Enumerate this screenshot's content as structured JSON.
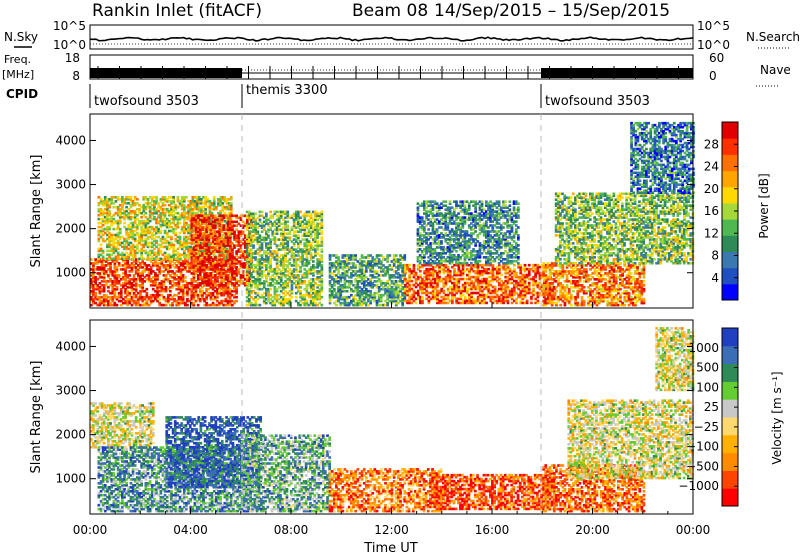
{
  "header": {
    "station": "Rankin Inlet (fitACF)",
    "beam": "Beam 08",
    "date_range": "14/Sep/2015 – 15/Sep/2015"
  },
  "strips": {
    "nsky_label": "N.Sky",
    "nsearch_label": "N.Search",
    "freq_label_1": "Freq.",
    "freq_label_2": "[MHz]",
    "nave_label": "Nave",
    "cpid_label": "CPID",
    "noise_ticks_left": [
      "10^5",
      "10^0"
    ],
    "noise_ticks_right": [
      "10^5",
      "10^0"
    ],
    "freq_ticks": [
      "18",
      "8"
    ],
    "nave_ticks": [
      "60",
      "0"
    ],
    "cpid_segments": [
      {
        "label": "twofsound 3503",
        "start_h": 0
      },
      {
        "label": "themis 3300",
        "start_h": 6
      },
      {
        "label": "twofsound 3503",
        "start_h": 18
      }
    ]
  },
  "chart_data": [
    {
      "type": "heatmap",
      "panel": "power",
      "ylabel": "Slant Range [km]",
      "ylim": [
        200,
        4600
      ],
      "yticks": [
        1000,
        2000,
        3000,
        4000
      ],
      "xlim_hours": [
        0,
        24
      ],
      "colorbar_label": "Power [dB]",
      "colorbar_ticks": [
        "28",
        "24",
        "20",
        "16",
        "12",
        "8",
        "4"
      ],
      "colorbar_colors": [
        "#0000ff",
        "#2050c0",
        "#3b78b0",
        "#2e8b57",
        "#50b850",
        "#a6d83c",
        "#ffd800",
        "#ffa500",
        "#ff7000",
        "#ff3000",
        "#e00000"
      ],
      "echo_regions": [
        {
          "t0": 0.0,
          "t1": 5.8,
          "r0": 250,
          "r1": 1300,
          "level": 0.85
        },
        {
          "t0": 0.3,
          "t1": 5.6,
          "r0": 1300,
          "r1": 2700,
          "level": 0.55
        },
        {
          "t0": 4.0,
          "t1": 6.4,
          "r0": 700,
          "r1": 2300,
          "level": 0.9
        },
        {
          "t0": 6.2,
          "t1": 9.2,
          "r0": 250,
          "r1": 2400,
          "level": 0.45
        },
        {
          "t0": 9.5,
          "t1": 12.5,
          "r0": 250,
          "r1": 1400,
          "level": 0.35
        },
        {
          "t0": 12.5,
          "t1": 18.5,
          "r0": 300,
          "r1": 1200,
          "level": 0.8
        },
        {
          "t0": 13.0,
          "t1": 17.0,
          "r0": 1200,
          "r1": 2600,
          "level": 0.3
        },
        {
          "t0": 18.0,
          "t1": 22.0,
          "r0": 250,
          "r1": 1200,
          "level": 0.75
        },
        {
          "t0": 18.5,
          "t1": 24.0,
          "r0": 1200,
          "r1": 2800,
          "level": 0.45
        },
        {
          "t0": 21.5,
          "t1": 24.0,
          "r0": 2800,
          "r1": 4400,
          "level": 0.25
        }
      ]
    },
    {
      "type": "heatmap",
      "panel": "velocity",
      "ylabel": "Slant Range [km]",
      "ylim": [
        200,
        4600
      ],
      "yticks": [
        1000,
        2000,
        3000,
        4000
      ],
      "xlim_hours": [
        0,
        24
      ],
      "xticks": [
        "00:00",
        "04:00",
        "08:00",
        "12:00",
        "16:00",
        "20:00",
        "00:00"
      ],
      "xlabel": "Time UT",
      "colorbar_label": "Velocity [m s⁻¹]",
      "colorbar_ticks": [
        "1000",
        "500",
        "100",
        "25",
        "−25",
        "−100",
        "−500",
        "−1000"
      ],
      "colorbar_colors": [
        "#ff0000",
        "#ff4500",
        "#ff8c00",
        "#ffb000",
        "#ffd870",
        "#c8c8c8",
        "#66cc33",
        "#2e8b57",
        "#3b6eb5",
        "#2040c0"
      ],
      "echo_regions": [
        {
          "t0": 0.0,
          "t1": 2.5,
          "r0": 1700,
          "r1": 2700,
          "level": 0.5
        },
        {
          "t0": 0.3,
          "t1": 6.5,
          "r0": 250,
          "r1": 1700,
          "level": 0.75
        },
        {
          "t0": 3.0,
          "t1": 6.8,
          "r0": 800,
          "r1": 2400,
          "level": 0.9
        },
        {
          "t0": 6.0,
          "t1": 9.5,
          "r0": 250,
          "r1": 2000,
          "level": 0.7
        },
        {
          "t0": 9.5,
          "t1": 14.0,
          "r0": 250,
          "r1": 1200,
          "level": 0.25
        },
        {
          "t0": 13.5,
          "t1": 18.5,
          "r0": 300,
          "r1": 1100,
          "level": 0.15
        },
        {
          "t0": 18.0,
          "t1": 22.0,
          "r0": 250,
          "r1": 1300,
          "level": 0.2
        },
        {
          "t0": 19.0,
          "t1": 24.0,
          "r0": 1000,
          "r1": 2800,
          "level": 0.5
        },
        {
          "t0": 22.5,
          "t1": 24.0,
          "r0": 3000,
          "r1": 4400,
          "level": 0.5
        }
      ]
    }
  ]
}
